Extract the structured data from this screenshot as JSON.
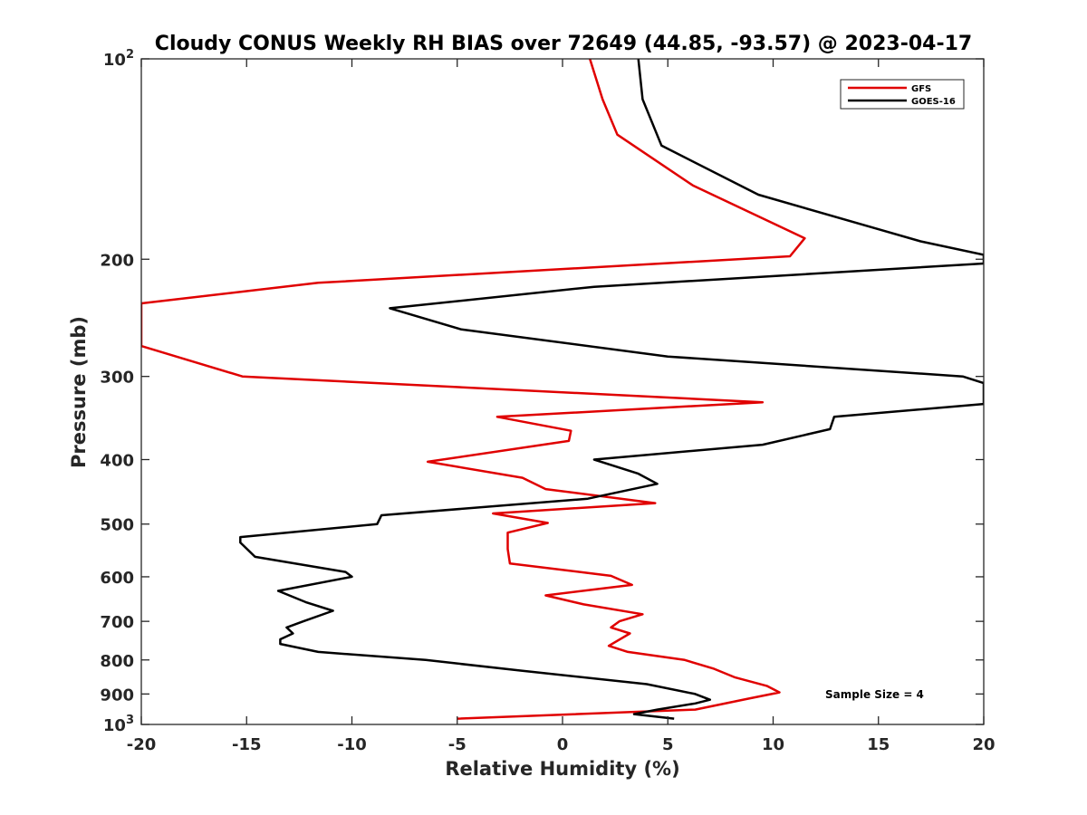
{
  "chart_data": {
    "type": "line",
    "title": "Cloudy CONUS Weekly RH BIAS over 72649 (44.85, -93.57) @ 2023-04-17",
    "xlabel": "Relative Humidity (%)",
    "ylabel": "Pressure (mb)",
    "xlim": [
      -20,
      20
    ],
    "ylim": [
      100,
      1000
    ],
    "y_scale": "log",
    "y_reversed": true,
    "x_ticks": [
      "-20",
      "-15",
      "-10",
      "-5",
      "0",
      "5",
      "10",
      "15",
      "20"
    ],
    "y_ticks": [
      {
        "value": 100,
        "base": "10",
        "exp": "2"
      },
      {
        "value": 200,
        "label": "200"
      },
      {
        "value": 300,
        "label": "300"
      },
      {
        "value": 400,
        "label": "400"
      },
      {
        "value": 500,
        "label": "500"
      },
      {
        "value": 600,
        "label": "600"
      },
      {
        "value": 700,
        "label": "700"
      },
      {
        "value": 800,
        "label": "800"
      },
      {
        "value": 900,
        "label": "900"
      },
      {
        "value": 1000,
        "base": "10",
        "exp": "3"
      }
    ],
    "legend": {
      "placement": "top-right",
      "entries": [
        "GFS",
        "GOES-16"
      ]
    },
    "annotation": "Sample Size = 4",
    "grid": false,
    "series": [
      {
        "name": "GFS",
        "color": "#e00000",
        "points": [
          [
            1.3,
            100
          ],
          [
            1.9,
            115
          ],
          [
            2.6,
            130
          ],
          [
            6.2,
            155
          ],
          [
            11.5,
            186
          ],
          [
            10.8,
            198
          ],
          [
            -11.6,
            217
          ],
          [
            -20.0,
            233
          ],
          [
            -20.0,
            270
          ],
          [
            -15.2,
            300
          ],
          [
            9.5,
            328
          ],
          [
            -3.1,
            345
          ],
          [
            0.4,
            362
          ],
          [
            0.3,
            375
          ],
          [
            -6.4,
            403
          ],
          [
            -1.9,
            426
          ],
          [
            -0.8,
            443
          ],
          [
            4.4,
            465
          ],
          [
            -3.3,
            482
          ],
          [
            -0.7,
            498
          ],
          [
            -2.6,
            515
          ],
          [
            -2.6,
            545
          ],
          [
            -2.5,
            573
          ],
          [
            2.3,
            598
          ],
          [
            3.3,
            617
          ],
          [
            -0.8,
            640
          ],
          [
            1.0,
            660
          ],
          [
            3.8,
            683
          ],
          [
            2.7,
            700
          ],
          [
            2.3,
            715
          ],
          [
            3.2,
            730
          ],
          [
            2.2,
            762
          ],
          [
            3.1,
            778
          ],
          [
            5.8,
            800
          ],
          [
            7.2,
            825
          ],
          [
            8.2,
            850
          ],
          [
            9.7,
            875
          ],
          [
            10.3,
            895
          ],
          [
            8.8,
            915
          ],
          [
            6.3,
            950
          ],
          [
            -5.0,
            980
          ]
        ]
      },
      {
        "name": "GOES-16",
        "color": "#000000",
        "points": [
          [
            3.6,
            100
          ],
          [
            3.8,
            115
          ],
          [
            4.7,
            135
          ],
          [
            9.3,
            160
          ],
          [
            17.0,
            188
          ],
          [
            20.0,
            197
          ],
          [
            20.0,
            203
          ],
          [
            1.5,
            220
          ],
          [
            -8.2,
            237
          ],
          [
            -4.8,
            255
          ],
          [
            5.0,
            280
          ],
          [
            19.0,
            300
          ],
          [
            20.0,
            307
          ],
          [
            20.0,
            330
          ],
          [
            12.9,
            345
          ],
          [
            12.7,
            360
          ],
          [
            9.5,
            380
          ],
          [
            1.5,
            400
          ],
          [
            3.6,
            420
          ],
          [
            4.5,
            435
          ],
          [
            1.2,
            458
          ],
          [
            -8.6,
            485
          ],
          [
            -8.8,
            500
          ],
          [
            -15.3,
            523
          ],
          [
            -15.3,
            533
          ],
          [
            -14.6,
            560
          ],
          [
            -10.3,
            590
          ],
          [
            -10.0,
            600
          ],
          [
            -13.5,
            630
          ],
          [
            -12.2,
            655
          ],
          [
            -10.9,
            675
          ],
          [
            -12.3,
            700
          ],
          [
            -13.1,
            715
          ],
          [
            -12.8,
            730
          ],
          [
            -13.4,
            745
          ],
          [
            -13.4,
            757
          ],
          [
            -11.6,
            778
          ],
          [
            -6.5,
            800
          ],
          [
            -2.0,
            830
          ],
          [
            4.0,
            870
          ],
          [
            6.3,
            900
          ],
          [
            7.0,
            918
          ],
          [
            6.3,
            930
          ],
          [
            4.5,
            950
          ],
          [
            3.4,
            965
          ],
          [
            5.3,
            980
          ]
        ]
      }
    ]
  }
}
